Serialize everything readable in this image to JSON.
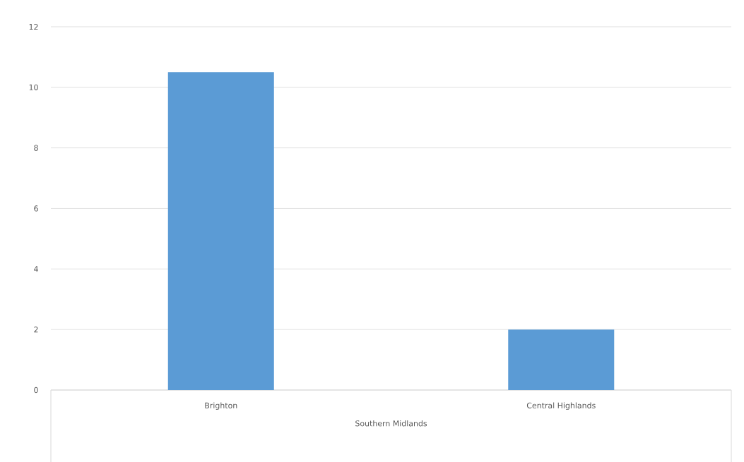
{
  "chart_data": {
    "type": "bar",
    "xlabel": "Southern Midlands",
    "categories": [
      "Brighton",
      "Central Highlands"
    ],
    "values": [
      10.5,
      2
    ],
    "color": "#5b9bd5",
    "ylim": [
      0,
      12
    ],
    "yticks": [
      0,
      2,
      4,
      6,
      8,
      10,
      12
    ],
    "grid": "y"
  }
}
